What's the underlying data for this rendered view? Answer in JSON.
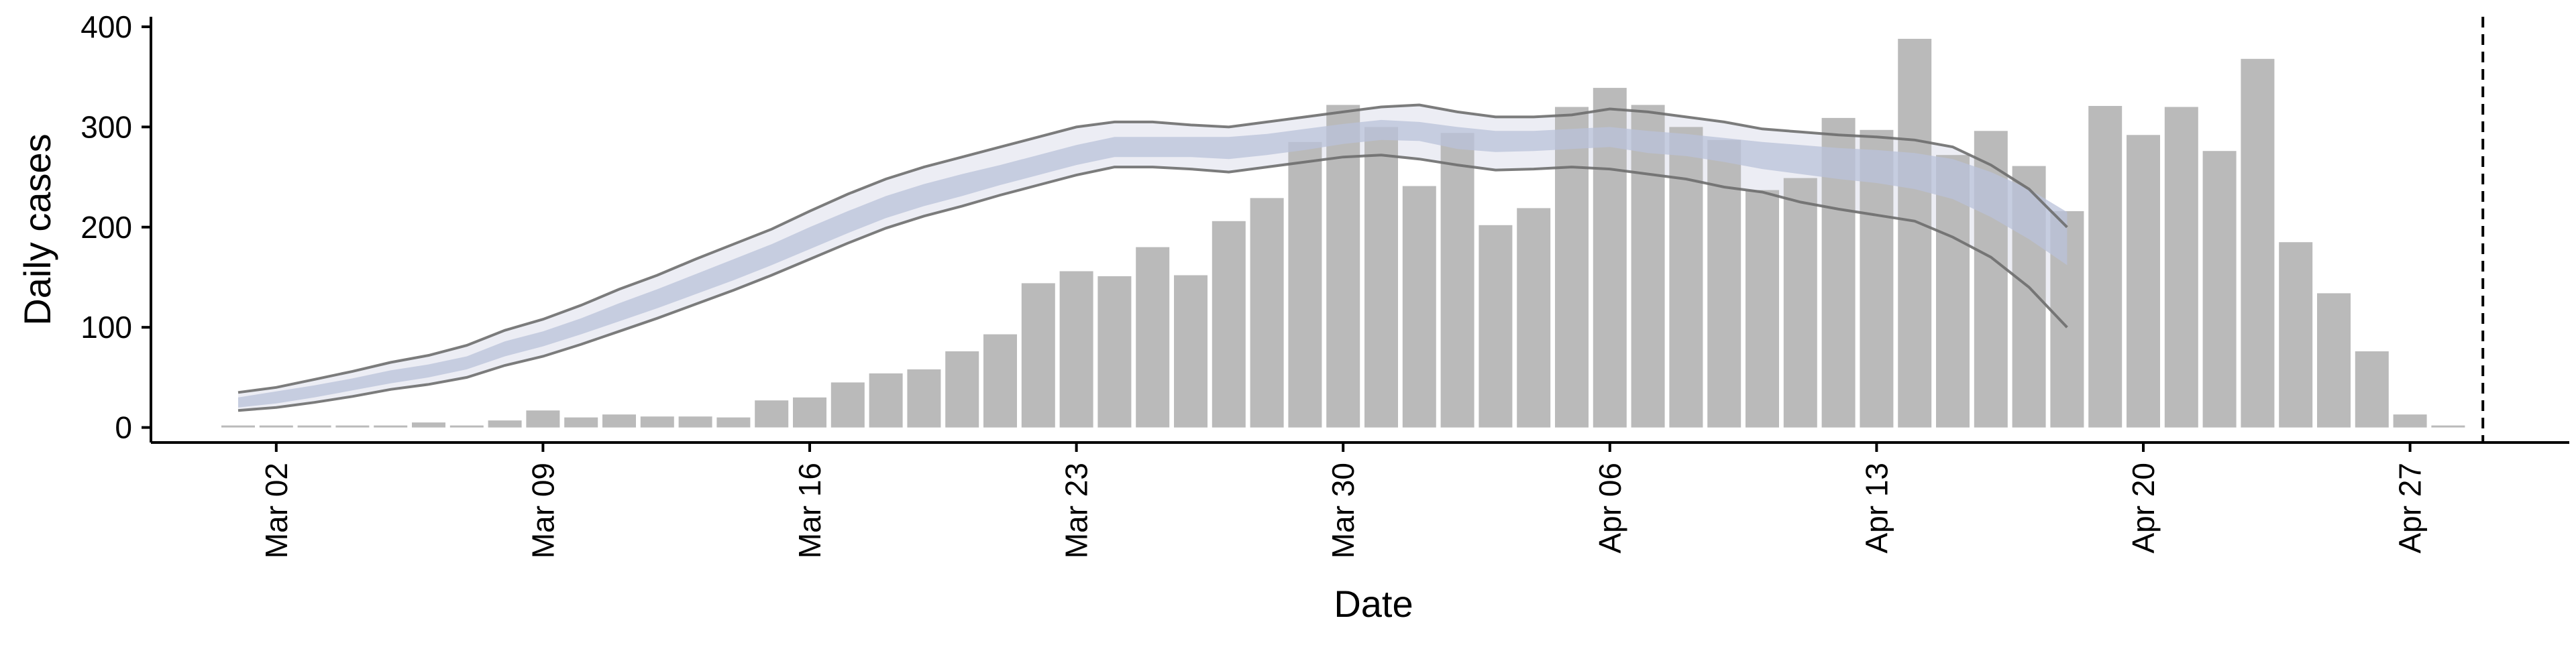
{
  "chart_data": {
    "type": "bar",
    "xlabel": "Date",
    "ylabel": "Daily cases",
    "ylim": [
      -15,
      410
    ],
    "yticks": [
      0,
      100,
      200,
      300,
      400
    ],
    "x_dates": [
      "Mar 01",
      "Mar 02",
      "Mar 03",
      "Mar 04",
      "Mar 05",
      "Mar 06",
      "Mar 07",
      "Mar 08",
      "Mar 09",
      "Mar 10",
      "Mar 11",
      "Mar 12",
      "Mar 13",
      "Mar 14",
      "Mar 15",
      "Mar 16",
      "Mar 17",
      "Mar 18",
      "Mar 19",
      "Mar 20",
      "Mar 21",
      "Mar 22",
      "Mar 23",
      "Mar 24",
      "Mar 25",
      "Mar 26",
      "Mar 27",
      "Mar 28",
      "Mar 29",
      "Mar 30",
      "Mar 31",
      "Apr 01",
      "Apr 02",
      "Apr 03",
      "Apr 04",
      "Apr 05",
      "Apr 06",
      "Apr 07",
      "Apr 08",
      "Apr 09",
      "Apr 10",
      "Apr 11",
      "Apr 12",
      "Apr 13",
      "Apr 14",
      "Apr 15",
      "Apr 16",
      "Apr 17",
      "Apr 18",
      "Apr 19",
      "Apr 20",
      "Apr 21",
      "Apr 22",
      "Apr 23",
      "Apr 24",
      "Apr 25",
      "Apr 26",
      "Apr 27",
      "Apr 28",
      "Apr 29",
      "Apr 30"
    ],
    "xticks": [
      {
        "date": "Mar 02",
        "label": "Mar 02"
      },
      {
        "date": "Mar 09",
        "label": "Mar 09"
      },
      {
        "date": "Mar 16",
        "label": "Mar 16"
      },
      {
        "date": "Mar 23",
        "label": "Mar 23"
      },
      {
        "date": "Mar 30",
        "label": "Mar 30"
      },
      {
        "date": "Apr 06",
        "label": "Apr 06"
      },
      {
        "date": "Apr 13",
        "label": "Apr 13"
      },
      {
        "date": "Apr 20",
        "label": "Apr 20"
      },
      {
        "date": "Apr 27",
        "label": "Apr 27"
      }
    ],
    "bars": {
      "dates": [
        "Mar 01",
        "Mar 02",
        "Mar 03",
        "Mar 04",
        "Mar 05",
        "Mar 06",
        "Mar 07",
        "Mar 08",
        "Mar 09",
        "Mar 10",
        "Mar 11",
        "Mar 12",
        "Mar 13",
        "Mar 14",
        "Mar 15",
        "Mar 16",
        "Mar 17",
        "Mar 18",
        "Mar 19",
        "Mar 20",
        "Mar 21",
        "Mar 22",
        "Mar 23",
        "Mar 24",
        "Mar 25",
        "Mar 26",
        "Mar 27",
        "Mar 28",
        "Mar 29",
        "Mar 30",
        "Mar 31",
        "Apr 01",
        "Apr 02",
        "Apr 03",
        "Apr 04",
        "Apr 05",
        "Apr 06",
        "Apr 07",
        "Apr 08",
        "Apr 09",
        "Apr 10",
        "Apr 11",
        "Apr 12",
        "Apr 13",
        "Apr 14",
        "Apr 15",
        "Apr 16",
        "Apr 17",
        "Apr 18",
        "Apr 19",
        "Apr 20",
        "Apr 21",
        "Apr 22",
        "Apr 23",
        "Apr 24",
        "Apr 25",
        "Apr 26",
        "Apr 27",
        "Apr 28"
      ],
      "values": [
        2,
        2,
        1,
        1,
        1,
        5,
        2,
        7,
        17,
        10,
        13,
        11,
        11,
        10,
        27,
        30,
        45,
        54,
        58,
        76,
        93,
        144,
        156,
        151,
        180,
        152,
        206,
        229,
        285,
        322,
        300,
        241,
        294,
        202,
        219,
        320,
        339,
        322,
        300,
        287,
        237,
        249,
        309,
        297,
        388,
        272,
        296,
        261,
        216,
        321,
        292,
        320,
        276,
        368,
        185,
        134,
        76,
        13,
        0
      ],
      "color": "#bababa"
    },
    "estimate": {
      "dates": [
        "Mar 01",
        "Mar 02",
        "Mar 03",
        "Mar 04",
        "Mar 05",
        "Mar 06",
        "Mar 07",
        "Mar 08",
        "Mar 09",
        "Mar 10",
        "Mar 11",
        "Mar 12",
        "Mar 13",
        "Mar 14",
        "Mar 15",
        "Mar 16",
        "Mar 17",
        "Mar 18",
        "Mar 19",
        "Mar 20",
        "Mar 21",
        "Mar 22",
        "Mar 23",
        "Mar 24",
        "Mar 25",
        "Mar 26",
        "Mar 27",
        "Mar 28",
        "Mar 29",
        "Mar 30",
        "Mar 31",
        "Apr 01",
        "Apr 02",
        "Apr 03",
        "Apr 04",
        "Apr 05",
        "Apr 06",
        "Apr 07",
        "Apr 08",
        "Apr 09",
        "Apr 10",
        "Apr 11",
        "Apr 12",
        "Apr 13",
        "Apr 14",
        "Apr 15",
        "Apr 16",
        "Apr 17",
        "Apr 18"
      ],
      "median": [
        25,
        30,
        35,
        42,
        50,
        56,
        64,
        78,
        88,
        101,
        115,
        128,
        143,
        157,
        172,
        189,
        205,
        220,
        232,
        242,
        252,
        262,
        272,
        280,
        280,
        280,
        279,
        282,
        287,
        293,
        297,
        295,
        289,
        285,
        285,
        288,
        290,
        285,
        282,
        277,
        272,
        269,
        265,
        262,
        258,
        250,
        235,
        215,
        190
      ],
      "inner_lower": [
        20,
        24,
        30,
        37,
        44,
        50,
        58,
        71,
        81,
        93,
        106,
        119,
        133,
        147,
        162,
        178,
        194,
        209,
        221,
        231,
        242,
        252,
        262,
        270,
        270,
        270,
        268,
        272,
        277,
        283,
        287,
        286,
        278,
        275,
        276,
        278,
        280,
        274,
        271,
        265,
        258,
        253,
        248,
        244,
        238,
        228,
        210,
        188,
        162
      ],
      "inner_upper": [
        30,
        36,
        42,
        49,
        57,
        63,
        71,
        86,
        96,
        109,
        124,
        138,
        153,
        168,
        183,
        200,
        216,
        231,
        243,
        253,
        262,
        272,
        282,
        290,
        290,
        290,
        290,
        293,
        298,
        303,
        307,
        305,
        300,
        296,
        296,
        298,
        300,
        296,
        293,
        289,
        285,
        282,
        279,
        277,
        274,
        268,
        255,
        238,
        215
      ],
      "outer_lower": [
        17,
        20,
        25,
        31,
        38,
        43,
        50,
        62,
        71,
        83,
        96,
        109,
        123,
        137,
        152,
        168,
        184,
        199,
        211,
        221,
        232,
        242,
        252,
        260,
        260,
        258,
        255,
        260,
        265,
        270,
        272,
        268,
        262,
        257,
        258,
        260,
        258,
        253,
        248,
        240,
        235,
        225,
        218,
        212,
        206,
        190,
        170,
        140,
        100
      ],
      "outer_upper": [
        35,
        40,
        48,
        56,
        65,
        72,
        82,
        97,
        108,
        122,
        138,
        152,
        168,
        183,
        198,
        216,
        233,
        248,
        260,
        270,
        280,
        290,
        300,
        305,
        305,
        302,
        300,
        305,
        310,
        315,
        320,
        322,
        315,
        310,
        310,
        312,
        318,
        315,
        310,
        305,
        298,
        295,
        292,
        290,
        287,
        280,
        262,
        238,
        200
      ],
      "inner_color": "#b9c1d9",
      "outer_fill": "#ecedf4",
      "outer_line_color": "#6e6e6e"
    },
    "vline": {
      "date": "Apr 29",
      "style": "dashed",
      "color": "#000000"
    },
    "grid": false,
    "legend": "none"
  }
}
